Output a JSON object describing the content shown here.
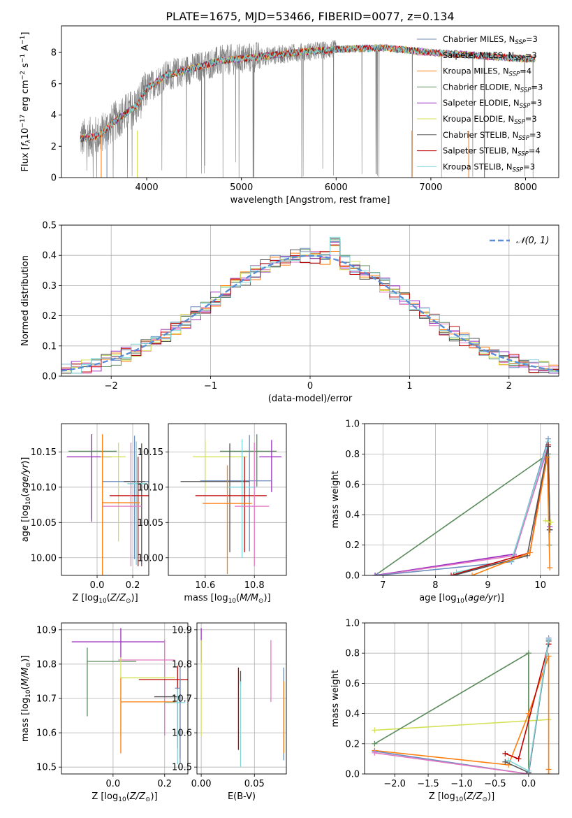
{
  "figure": {
    "title": "PLATE=1675, MJD=53466, FIBERID=0077, z=0.134"
  },
  "chart_data": [
    {
      "id": "spectrum",
      "type": "line",
      "title": "PLATE=1675, MJD=53466, FIBERID=0077, z=0.134",
      "xlabel": "wavelength [Angstrom, rest frame]",
      "ylabel": "Flux [f_λ 10^-17 erg cm^-2 s^-1 A^-1]",
      "xlim": [
        3100,
        8350
      ],
      "ylim": [
        0,
        9.7
      ],
      "xticks": [
        "4000",
        "5000",
        "6000",
        "7000",
        "8000"
      ],
      "yticks": [
        "0",
        "2",
        "4",
        "6",
        "8"
      ],
      "grid": false,
      "legend_position": "top-right",
      "data_series": {
        "name": "",
        "color": "#808080",
        "x_range": [
          3300,
          8100
        ],
        "envelope_x": [
          3300,
          3500,
          3700,
          3900,
          4000,
          4200,
          4500,
          4800,
          5000,
          5300,
          5600,
          6000,
          6500,
          7000,
          7500,
          8000,
          8100
        ],
        "envelope_y": [
          2.5,
          2.7,
          3.8,
          4.6,
          5.7,
          6.5,
          7.0,
          7.5,
          7.6,
          7.8,
          8.0,
          8.2,
          8.3,
          8.0,
          7.8,
          7.6,
          7.6
        ]
      },
      "series": [
        {
          "name": "Chabrier MILES, N_SSP=3",
          "color": "#6c8ebf"
        },
        {
          "name": "Salpeter MILES, N_SSP=3",
          "color": "#e377c2"
        },
        {
          "name": "Kroupa MILES, N_SSP=4",
          "color": "#ff7f0e"
        },
        {
          "name": "Chabrier ELODIE, N_SSP=3",
          "color": "#5b8a5b"
        },
        {
          "name": "Salpeter ELODIE, N_SSP=3",
          "color": "#9b30c0"
        },
        {
          "name": "Kroupa ELODIE, N_SSP=3",
          "color": "#d4e157"
        },
        {
          "name": "Chabrier STELIB, N_SSP=3",
          "color": "#555555"
        },
        {
          "name": "Salpeter STELIB, N_SSP=4",
          "color": "#c00000"
        },
        {
          "name": "Kroupa STELIB, N_SSP=3",
          "color": "#80d4d8"
        }
      ],
      "model_curve": {
        "x": [
          3300,
          3500,
          3700,
          3900,
          4000,
          4200,
          4500,
          4800,
          5000,
          5300,
          5600,
          6000,
          6500,
          7000,
          7500,
          8000,
          8100
        ],
        "y": [
          2.5,
          2.7,
          3.8,
          4.6,
          5.7,
          6.5,
          7.0,
          7.5,
          7.6,
          7.8,
          8.0,
          8.2,
          8.3,
          8.0,
          7.8,
          7.6,
          7.6
        ]
      }
    },
    {
      "id": "residuals",
      "type": "histogram",
      "xlabel": "(data-model)/error",
      "ylabel": "Normed distribution",
      "xlim": [
        -2.5,
        2.5
      ],
      "ylim": [
        0,
        0.5
      ],
      "xticks": [
        "−2",
        "−1",
        "0",
        "1",
        "2"
      ],
      "yticks": [
        "0.0",
        "0.1",
        "0.2",
        "0.3",
        "0.4",
        "0.5"
      ],
      "grid": true,
      "legend_position": "top-right",
      "reference_label": "𝒩(0, 1)",
      "reference_color": "#5b8dd6",
      "bin_edges": [
        -2.5,
        -2.4,
        -2.3,
        -2.2,
        -2.1,
        -2.0,
        -1.9,
        -1.8,
        -1.7,
        -1.6,
        -1.5,
        -1.4,
        -1.3,
        -1.2,
        -1.1,
        -1.0,
        -0.9,
        -0.8,
        -0.7,
        -0.6,
        -0.5,
        -0.4,
        -0.3,
        -0.2,
        -0.1,
        0.0,
        0.1,
        0.2,
        0.3,
        0.4,
        0.5,
        0.6,
        0.7,
        0.8,
        0.9,
        1.0,
        1.1,
        1.2,
        1.3,
        1.4,
        1.5,
        1.6,
        1.7,
        1.8,
        1.9,
        2.0,
        2.1,
        2.2,
        2.3,
        2.4,
        2.5
      ],
      "jitter_amplitude": 0.025
    },
    {
      "id": "age-vs-Z",
      "type": "errorbar",
      "xlabel": "Z [log10(Z/Z⊙)]",
      "ylabel": "age [log10(age/yr)]",
      "xlim": [
        -0.2,
        0.29
      ],
      "ylim": [
        9.975,
        10.19
      ],
      "xticks": [
        "0.0",
        "0.2"
      ],
      "yticks": [
        "10.00",
        "10.05",
        "10.10",
        "10.15"
      ],
      "grid": true,
      "points": [
        {
          "c": 3,
          "x": -0.03,
          "xerr": [
            0.13,
            0.14
          ],
          "y": 10.151,
          "yerr": [
            0.096,
            0.024
          ]
        },
        {
          "c": 4,
          "x": -0.03,
          "xerr": [
            0.14,
            0.11
          ],
          "y": 10.143,
          "yerr": [
            0.092,
            0.032
          ]
        },
        {
          "c": 5,
          "x": 0.12,
          "xerr": [
            0.1,
            0.04
          ],
          "y": 10.143,
          "yerr": [
            0.12,
            0.02
          ]
        },
        {
          "c": 0,
          "x": 0.21,
          "xerr": [
            0.18,
            0.09
          ],
          "y": 10.108,
          "yerr": [
            0.11,
            0.065
          ]
        },
        {
          "c": 6,
          "x": 0.25,
          "xerr": [
            0.1,
            0.02
          ],
          "y": 10.108,
          "yerr": [
            0.12,
            0.054
          ]
        },
        {
          "c": 8,
          "x": 0.22,
          "xerr": [
            0.05,
            0.06
          ],
          "y": 10.105,
          "yerr": [
            0.115,
            0.06
          ]
        },
        {
          "c": 7,
          "x": 0.23,
          "xerr": [
            0.16,
            0.06
          ],
          "y": 10.088,
          "yerr": [
            0.1,
            0.055
          ]
        },
        {
          "c": 2,
          "x": 0.03,
          "xerr": [
            0.0,
            0.21
          ],
          "y": 10.078,
          "yerr": [
            0.12,
            0.097
          ]
        },
        {
          "c": 1,
          "x": 0.19,
          "xerr": [
            0.16,
            0.06
          ],
          "y": 10.073,
          "yerr": [
            0.085,
            0.09
          ]
        }
      ]
    },
    {
      "id": "age-vs-mass",
      "type": "errorbar",
      "xlabel": "mass [log10(M/M⊙)]",
      "ylabel": "",
      "xlim": [
        10.45,
        10.93
      ],
      "ylim": [
        9.975,
        10.19
      ],
      "xticks": [
        "10.6",
        "10.8"
      ],
      "yticks": [
        "10.00",
        "10.05",
        "10.10",
        "10.15"
      ],
      "grid": true,
      "points": [
        {
          "c": 3,
          "x": 10.81,
          "xerr": [
            0.15,
            0.08
          ],
          "y": 10.151,
          "yerr": [
            0.05,
            0.024
          ]
        },
        {
          "c": 4,
          "x": 10.87,
          "xerr": [
            0.05,
            0.04
          ],
          "y": 10.143,
          "yerr": [
            0.05,
            0.024
          ]
        },
        {
          "c": 5,
          "x": 10.6,
          "xerr": [
            0.05,
            0.17
          ],
          "y": 10.143,
          "yerr": [
            0.05,
            0.024
          ]
        },
        {
          "c": 0,
          "x": 10.78,
          "xerr": [
            0.2,
            0.09
          ],
          "y": 10.109,
          "yerr": [
            0.1,
            0.065
          ]
        },
        {
          "c": 6,
          "x": 10.7,
          "xerr": [
            0.2,
            0.08
          ],
          "y": 10.108,
          "yerr": [
            0.1,
            0.054
          ]
        },
        {
          "c": 8,
          "x": 10.75,
          "xerr": [
            0.06,
            0.06
          ],
          "y": 10.1,
          "yerr": [
            0.1,
            0.068
          ]
        },
        {
          "c": 7,
          "x": 10.76,
          "xerr": [
            0.2,
            0.09
          ],
          "y": 10.088,
          "yerr": [
            0.08,
            0.055
          ]
        },
        {
          "c": 2,
          "x": 10.69,
          "xerr": [
            0.1,
            0.1
          ],
          "y": 10.077,
          "yerr": [
            0.1,
            0.054
          ]
        },
        {
          "c": 1,
          "x": 10.8,
          "xerr": [
            0.08,
            0.06
          ],
          "y": 10.073,
          "yerr": [
            0.085,
            0.09
          ]
        }
      ]
    },
    {
      "id": "weight-vs-age",
      "type": "line",
      "xlabel": "age [log10(age/yr)]",
      "ylabel": "mass weight",
      "xlim": [
        6.65,
        10.35
      ],
      "ylim": [
        0,
        1.0
      ],
      "xticks": [
        "7",
        "8",
        "9",
        "10"
      ],
      "yticks": [
        "0.0",
        "0.2",
        "0.4",
        "0.6",
        "0.8",
        "1.0"
      ],
      "grid": true,
      "lines": [
        {
          "c": 3,
          "x": [
            6.85,
            10.15,
            10.17
          ],
          "y": [
            0.0,
            0.8,
            0.2
          ]
        },
        {
          "c": 4,
          "x": [
            6.85,
            9.5,
            10.15,
            10.18
          ],
          "y": [
            0.0,
            0.14,
            0.85,
            0.32
          ]
        },
        {
          "c": 1,
          "x": [
            6.9,
            9.5,
            10.15,
            10.18
          ],
          "y": [
            0.0,
            0.13,
            0.86,
            0.3
          ]
        },
        {
          "c": 0,
          "x": [
            6.9,
            9.45,
            10.15,
            10.17
          ],
          "y": [
            0.0,
            0.09,
            0.9,
            0.3
          ]
        },
        {
          "c": 8,
          "x": [
            8.4,
            9.45,
            10.15,
            10.18
          ],
          "y": [
            0.02,
            0.1,
            0.88,
            0.3
          ]
        },
        {
          "c": 7,
          "x": [
            8.3,
            9.8,
            10.15,
            10.18
          ],
          "y": [
            0.0,
            0.15,
            0.86,
            0.3
          ]
        },
        {
          "c": 6,
          "x": [
            8.35,
            9.75,
            10.15,
            10.18
          ],
          "y": [
            0.0,
            0.13,
            0.85,
            0.3
          ]
        },
        {
          "c": 2,
          "x": [
            8.7,
            9.8,
            10.13,
            10.18
          ],
          "y": [
            0.0,
            0.15,
            0.78,
            0.05
          ]
        },
        {
          "c": 5,
          "x": [
            10.1,
            10.2
          ],
          "y": [
            0.36,
            0.35
          ]
        }
      ]
    },
    {
      "id": "mass-vs-Z",
      "type": "errorbar",
      "xlabel": "Z [log10(Z/Z⊙)]",
      "ylabel": "mass [log10(M/M⊙)]",
      "xlim": [
        -0.2,
        0.29
      ],
      "ylim": [
        10.48,
        10.92
      ],
      "xticks": [
        "0.0",
        "0.2"
      ],
      "yticks": [
        "10.5",
        "10.6",
        "10.7",
        "10.8",
        "10.9"
      ],
      "grid": true,
      "points": [
        {
          "c": 4,
          "x": 0.03,
          "xerr": [
            0.19,
            0.17
          ],
          "y": 10.865,
          "yerr": [
            0.05,
            0.04
          ]
        },
        {
          "c": 3,
          "x": -0.1,
          "xerr": [
            0.0,
            0.19
          ],
          "y": 10.808,
          "yerr": [
            0.16,
            0.04
          ]
        },
        {
          "c": 1,
          "x": 0.2,
          "xerr": [
            0.18,
            0.04
          ],
          "y": 10.812,
          "yerr": [
            0.22,
            0.06
          ]
        },
        {
          "c": 5,
          "x": 0.03,
          "xerr": [
            0.0,
            0.21
          ],
          "y": 10.76,
          "yerr": [
            0.17,
            0.06
          ]
        },
        {
          "c": 7,
          "x": 0.25,
          "xerr": [
            0.15,
            0.04
          ],
          "y": 10.755,
          "yerr": [
            0.2,
            0.04
          ]
        },
        {
          "c": 6,
          "x": 0.26,
          "xerr": [
            0.1,
            0.0
          ],
          "y": 10.705,
          "yerr": [
            0.18,
            0.05
          ]
        },
        {
          "c": 8,
          "x": 0.25,
          "xerr": [
            0.05,
            0.03
          ],
          "y": 10.688,
          "yerr": [
            0.18,
            0.04
          ]
        },
        {
          "c": 2,
          "x": 0.03,
          "xerr": [
            0.0,
            0.21
          ],
          "y": 10.69,
          "yerr": [
            0.15,
            0.07
          ]
        },
        {
          "c": 0,
          "x": 0.26,
          "xerr": [
            0.02,
            0.0
          ],
          "y": 10.73,
          "yerr": [
            0.22,
            0.06
          ]
        }
      ]
    },
    {
      "id": "mass-vs-EBV",
      "type": "errorbar",
      "xlabel": "E(B-V)",
      "ylabel": "",
      "xlim": [
        -0.004,
        0.08
      ],
      "ylim": [
        10.48,
        10.92
      ],
      "xticks": [
        "0.00",
        "0.05"
      ],
      "yticks": [
        "10.5",
        "10.6",
        "10.7",
        "10.8",
        "10.9"
      ],
      "grid": true,
      "points": [
        {
          "c": 4,
          "x": 0.0,
          "y": 10.865,
          "yerr": [
            0.06,
            0.04
          ]
        },
        {
          "c": 5,
          "x": 0.0,
          "y": 10.72,
          "yerr": [
            0.13,
            0.15
          ]
        },
        {
          "c": 7,
          "x": 0.035,
          "y": 10.73,
          "yerr": [
            0.18,
            0.06
          ]
        },
        {
          "c": 6,
          "x": 0.037,
          "y": 10.76,
          "yerr": [
            0.02,
            0.02
          ]
        },
        {
          "c": 8,
          "x": 0.037,
          "y": 10.65,
          "yerr": [
            0.15,
            0.1
          ]
        },
        {
          "c": 1,
          "x": 0.0655,
          "y": 10.78,
          "yerr": [
            0.09,
            0.09
          ]
        },
        {
          "c": 0,
          "x": 0.0775,
          "y": 10.7,
          "yerr": [
            0.18,
            0.09
          ]
        },
        {
          "c": 2,
          "x": 0.0775,
          "y": 10.65,
          "yerr": [
            0.11,
            0.1
          ]
        }
      ]
    },
    {
      "id": "weight-vs-Z",
      "type": "line",
      "xlabel": "Z [log10(Z/Z⊙)]",
      "ylabel": "mass weight",
      "xlim": [
        -2.45,
        0.45
      ],
      "ylim": [
        0,
        1.0
      ],
      "xticks": [
        "−2.0",
        "−1.5",
        "−1.0",
        "−0.5",
        "0.0"
      ],
      "yticks": [
        "0.0",
        "0.2",
        "0.4",
        "0.6",
        "0.8",
        "1.0"
      ],
      "grid": true,
      "lines": [
        {
          "c": 5,
          "x": [
            -2.3,
            0.3
          ],
          "y": [
            0.29,
            0.36
          ]
        },
        {
          "c": 3,
          "x": [
            -2.3,
            0.0,
            0.0,
            0.3
          ],
          "y": [
            0.2,
            0.8,
            0.0,
            0.88
          ]
        },
        {
          "c": 2,
          "x": [
            -2.3,
            -0.3,
            0.0,
            0.3,
            0.3,
            0.3
          ],
          "y": [
            0.155,
            0.06,
            0.4,
            0.78,
            0.0,
            0.03
          ]
        },
        {
          "c": 0,
          "x": [
            -2.3,
            0.0,
            0.3
          ],
          "y": [
            0.15,
            0.0,
            0.9
          ]
        },
        {
          "c": 1,
          "x": [
            -2.3,
            0.0,
            0.3
          ],
          "y": [
            0.14,
            0.0,
            0.89
          ]
        },
        {
          "c": 7,
          "x": [
            -0.35,
            -0.15,
            0.3
          ],
          "y": [
            0.135,
            0.1,
            0.86
          ]
        },
        {
          "c": 6,
          "x": [
            -0.35,
            0.0,
            0.3
          ],
          "y": [
            0.08,
            0.01,
            0.88
          ]
        },
        {
          "c": 8,
          "x": [
            -0.3,
            0.0,
            0.3
          ],
          "y": [
            0.09,
            0.02,
            0.89
          ]
        }
      ]
    }
  ]
}
